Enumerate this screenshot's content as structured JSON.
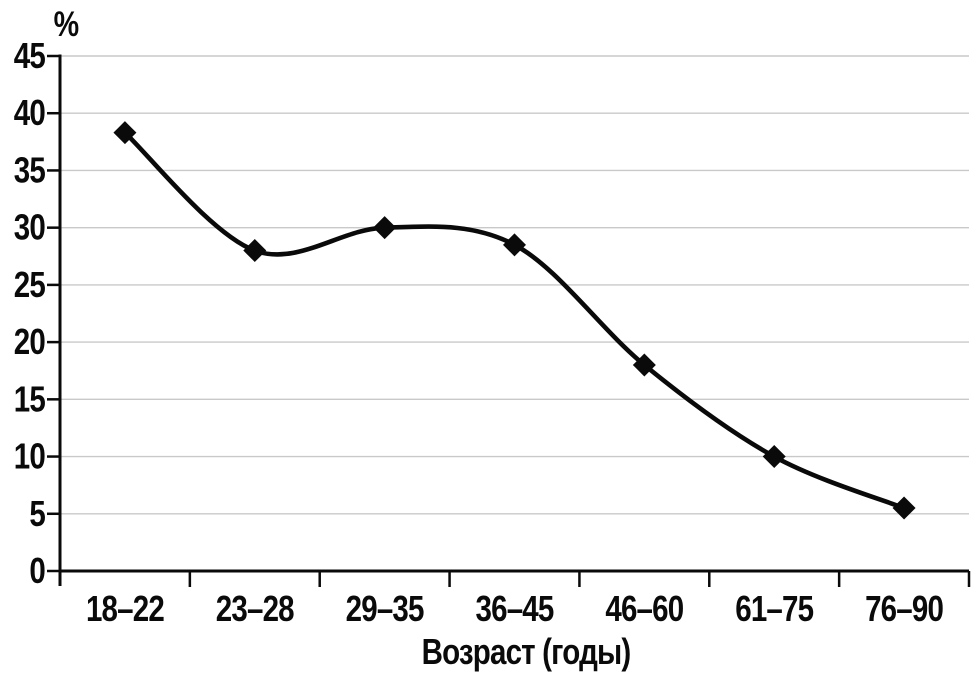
{
  "chart_data": {
    "type": "line",
    "title": "",
    "categories": [
      "18–22",
      "23–28",
      "29–35",
      "36–45",
      "46–60",
      "61–75",
      "76–90"
    ],
    "values": [
      38.3,
      28,
      30,
      28.5,
      18,
      10,
      5.5
    ],
    "xlabel": "Возраст (годы)",
    "ylabel": "%",
    "ylim": [
      0,
      45
    ],
    "ytick_step": 5,
    "yticks": [
      0,
      5,
      10,
      15,
      20,
      25,
      30,
      35,
      40,
      45
    ],
    "grid": true,
    "legend": false,
    "line_style": "smooth",
    "marker": "diamond",
    "colors": {
      "line": "#0a0a0a",
      "marker": "#0a0a0a",
      "axis": "#0a0a0a",
      "grid": "#c9c9c9",
      "text": "#0a0a0a",
      "background": "#ffffff"
    }
  }
}
